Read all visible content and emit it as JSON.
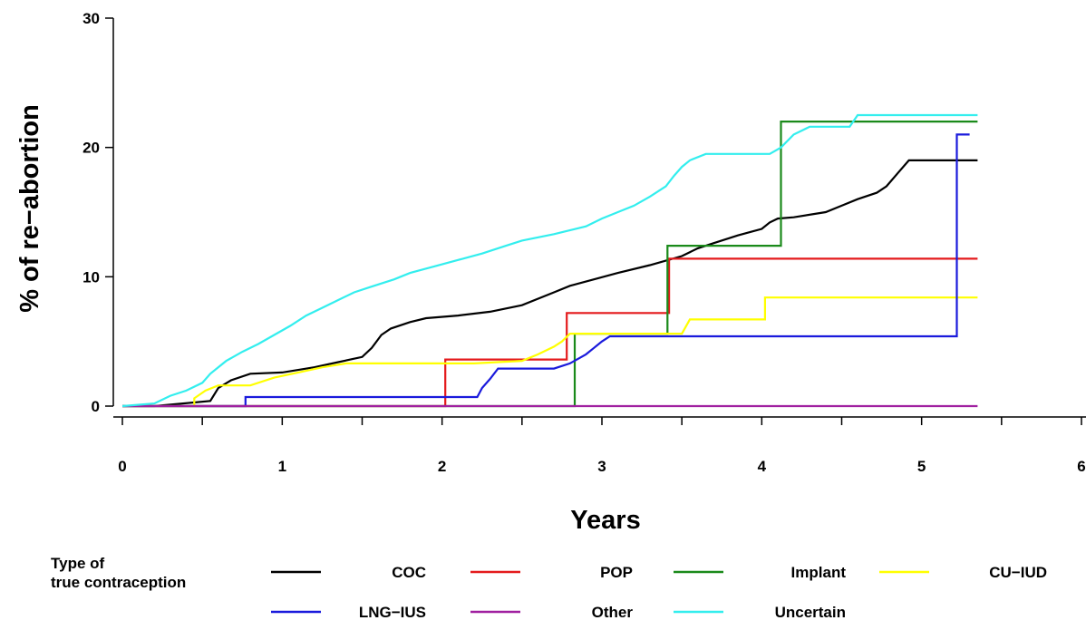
{
  "chart_data": {
    "type": "line",
    "xlabel": "Years",
    "ylabel": "% of re−abortion",
    "xlim": [
      0,
      6
    ],
    "ylim": [
      0,
      30
    ],
    "x_ticks": [
      "0",
      "1",
      "2",
      "3",
      "4",
      "5",
      "6"
    ],
    "y_ticks": [
      "0",
      "10",
      "20",
      "30"
    ],
    "grid": false,
    "legend": {
      "title_line1": "Type of",
      "title_line2": "true contraception",
      "placement": "bottom"
    },
    "series": [
      {
        "name": "COC",
        "color": "#000000",
        "points": [
          [
            0,
            0
          ],
          [
            0.2,
            0
          ],
          [
            0.55,
            0.4
          ],
          [
            0.6,
            1.4
          ],
          [
            0.68,
            2.0
          ],
          [
            0.8,
            2.5
          ],
          [
            1.0,
            2.6
          ],
          [
            1.2,
            3.0
          ],
          [
            1.35,
            3.4
          ],
          [
            1.5,
            3.8
          ],
          [
            1.56,
            4.5
          ],
          [
            1.62,
            5.5
          ],
          [
            1.68,
            6.0
          ],
          [
            1.8,
            6.5
          ],
          [
            1.9,
            6.8
          ],
          [
            2.1,
            7.0
          ],
          [
            2.3,
            7.3
          ],
          [
            2.5,
            7.8
          ],
          [
            2.7,
            8.8
          ],
          [
            2.8,
            9.3
          ],
          [
            2.95,
            9.8
          ],
          [
            3.1,
            10.3
          ],
          [
            3.3,
            10.9
          ],
          [
            3.5,
            11.6
          ],
          [
            3.6,
            12.2
          ],
          [
            3.7,
            12.6
          ],
          [
            3.85,
            13.2
          ],
          [
            4.0,
            13.7
          ],
          [
            4.05,
            14.2
          ],
          [
            4.1,
            14.5
          ],
          [
            4.2,
            14.6
          ],
          [
            4.4,
            15.0
          ],
          [
            4.5,
            15.5
          ],
          [
            4.6,
            16.0
          ],
          [
            4.72,
            16.5
          ],
          [
            4.78,
            17.0
          ],
          [
            4.85,
            18.0
          ],
          [
            4.92,
            19.0
          ],
          [
            5.35,
            19.0
          ]
        ]
      },
      {
        "name": "POP",
        "color": "#e41a1c",
        "points": [
          [
            0,
            0
          ],
          [
            2.02,
            0
          ],
          [
            2.02,
            3.6
          ],
          [
            2.78,
            3.6
          ],
          [
            2.78,
            7.2
          ],
          [
            3.42,
            7.2
          ],
          [
            3.42,
            11.4
          ],
          [
            5.35,
            11.4
          ]
        ]
      },
      {
        "name": "Implant",
        "color": "#1a8a1a",
        "points": [
          [
            0,
            0
          ],
          [
            2.83,
            0
          ],
          [
            2.83,
            5.6
          ],
          [
            3.41,
            5.6
          ],
          [
            3.41,
            12.4
          ],
          [
            4.12,
            12.4
          ],
          [
            4.12,
            22.0
          ],
          [
            5.35,
            22.0
          ]
        ]
      },
      {
        "name": "CU−IUD",
        "color": "#ffff00",
        "points": [
          [
            0,
            0
          ],
          [
            0.45,
            0
          ],
          [
            0.45,
            0.6
          ],
          [
            0.52,
            1.2
          ],
          [
            0.6,
            1.6
          ],
          [
            0.8,
            1.6
          ],
          [
            0.95,
            2.2
          ],
          [
            1.1,
            2.6
          ],
          [
            1.25,
            3.0
          ],
          [
            1.4,
            3.3
          ],
          [
            2.2,
            3.3
          ],
          [
            2.5,
            3.5
          ],
          [
            2.6,
            4.0
          ],
          [
            2.7,
            4.6
          ],
          [
            2.75,
            5.0
          ],
          [
            2.8,
            5.6
          ],
          [
            3.5,
            5.6
          ],
          [
            3.55,
            6.7
          ],
          [
            4.02,
            6.7
          ],
          [
            4.02,
            8.4
          ],
          [
            5.35,
            8.4
          ]
        ]
      },
      {
        "name": "LNG−IUS",
        "color": "#1a1adc",
        "points": [
          [
            0,
            0
          ],
          [
            0.77,
            0
          ],
          [
            0.77,
            0.7
          ],
          [
            2.22,
            0.7
          ],
          [
            2.25,
            1.4
          ],
          [
            2.3,
            2.1
          ],
          [
            2.35,
            2.9
          ],
          [
            2.7,
            2.9
          ],
          [
            2.8,
            3.3
          ],
          [
            2.9,
            4.0
          ],
          [
            2.95,
            4.5
          ],
          [
            3.0,
            5.0
          ],
          [
            3.05,
            5.4
          ],
          [
            5.22,
            5.4
          ],
          [
            5.22,
            21.0
          ],
          [
            5.3,
            21.0
          ]
        ]
      },
      {
        "name": "Other",
        "color": "#a020a0",
        "points": [
          [
            0,
            0
          ],
          [
            5.35,
            0
          ]
        ]
      },
      {
        "name": "Uncertain",
        "color": "#33eeee",
        "points": [
          [
            0,
            0
          ],
          [
            0.2,
            0.2
          ],
          [
            0.3,
            0.8
          ],
          [
            0.4,
            1.2
          ],
          [
            0.5,
            1.8
          ],
          [
            0.55,
            2.5
          ],
          [
            0.65,
            3.5
          ],
          [
            0.75,
            4.2
          ],
          [
            0.85,
            4.8
          ],
          [
            0.95,
            5.5
          ],
          [
            1.05,
            6.2
          ],
          [
            1.15,
            7.0
          ],
          [
            1.25,
            7.6
          ],
          [
            1.35,
            8.2
          ],
          [
            1.45,
            8.8
          ],
          [
            1.55,
            9.2
          ],
          [
            1.7,
            9.8
          ],
          [
            1.8,
            10.3
          ],
          [
            1.95,
            10.8
          ],
          [
            2.1,
            11.3
          ],
          [
            2.25,
            11.8
          ],
          [
            2.4,
            12.4
          ],
          [
            2.5,
            12.8
          ],
          [
            2.7,
            13.3
          ],
          [
            2.9,
            13.9
          ],
          [
            3.0,
            14.5
          ],
          [
            3.1,
            15.0
          ],
          [
            3.2,
            15.5
          ],
          [
            3.3,
            16.2
          ],
          [
            3.4,
            17.0
          ],
          [
            3.45,
            17.8
          ],
          [
            3.5,
            18.5
          ],
          [
            3.55,
            19.0
          ],
          [
            3.65,
            19.5
          ],
          [
            4.05,
            19.5
          ],
          [
            4.12,
            20.0
          ],
          [
            4.2,
            21.0
          ],
          [
            4.3,
            21.6
          ],
          [
            4.55,
            21.6
          ],
          [
            4.6,
            22.5
          ],
          [
            5.35,
            22.5
          ]
        ]
      }
    ]
  }
}
